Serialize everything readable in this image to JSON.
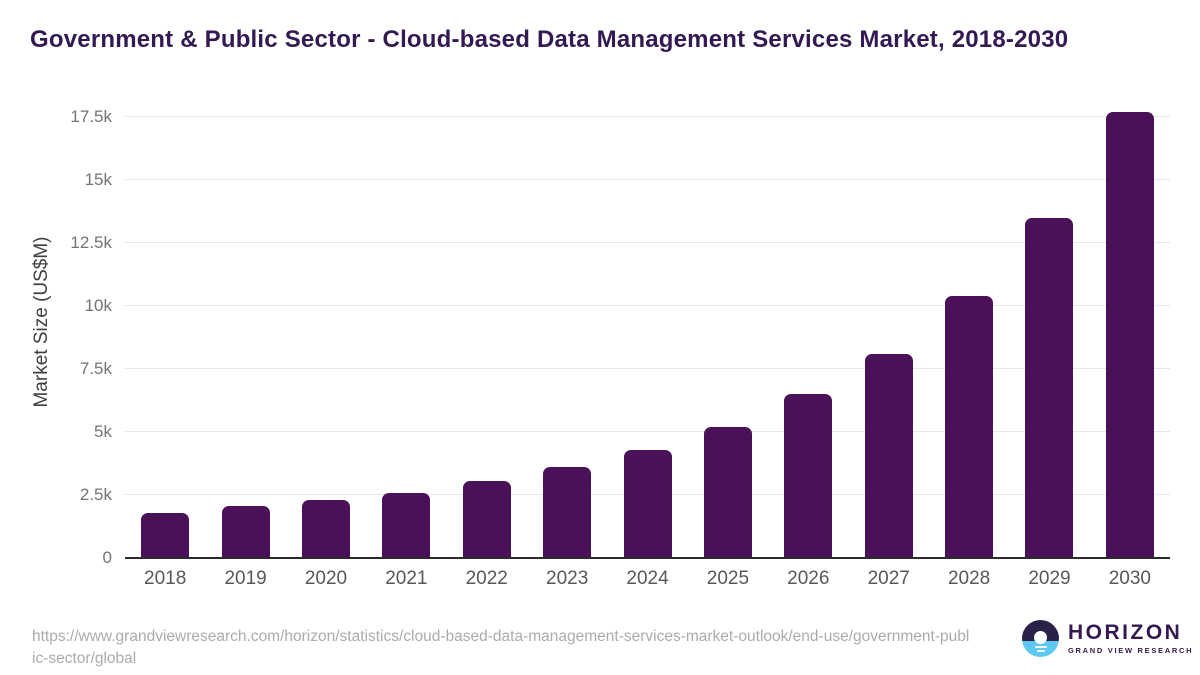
{
  "page": {
    "title": "Government & Public Sector - Cloud-based Data Management Services Market, 2018-2030"
  },
  "chart_data": {
    "type": "bar",
    "title": "Government & Public Sector - Cloud-based Data Management Services Market, 2018-2030",
    "categories": [
      "2018",
      "2019",
      "2020",
      "2021",
      "2022",
      "2023",
      "2024",
      "2025",
      "2026",
      "2027",
      "2028",
      "2029",
      "2030"
    ],
    "values": [
      1800,
      2050,
      2300,
      2600,
      3050,
      3600,
      4300,
      5200,
      6500,
      8100,
      10400,
      13500,
      17700
    ],
    "xlabel": "",
    "ylabel": "Market Size (US$M)",
    "ylim": [
      0,
      17500
    ],
    "ytick_interval": 2500,
    "ytick_labels": [
      "0",
      "2.5k",
      "5k",
      "7.5k",
      "10k",
      "12.5k",
      "15k",
      "17.5k"
    ],
    "grid": true,
    "legend": false,
    "bar_color": "#4a1159"
  },
  "footer": {
    "source_url": "https://www.grandviewresearch.com/horizon/statistics/cloud-based-data-management-services-market-outlook/end-use/government-public-sector/global",
    "logo_title": "HORIZON",
    "logo_subtitle": "GRAND VIEW RESEARCH"
  },
  "colors": {
    "bar": "#4a1159",
    "title_text": "#331a52",
    "axis_line": "#2b2b2b",
    "gridline": "#e7e7e7",
    "y_tick_label": "#747474",
    "x_axis_label": "#57585c",
    "axis_title": "#3f3f3f",
    "url_text": "#ababab",
    "logo_dark": "#2b2148",
    "logo_blue": "#5ec9f0",
    "background": "#ffffff"
  }
}
